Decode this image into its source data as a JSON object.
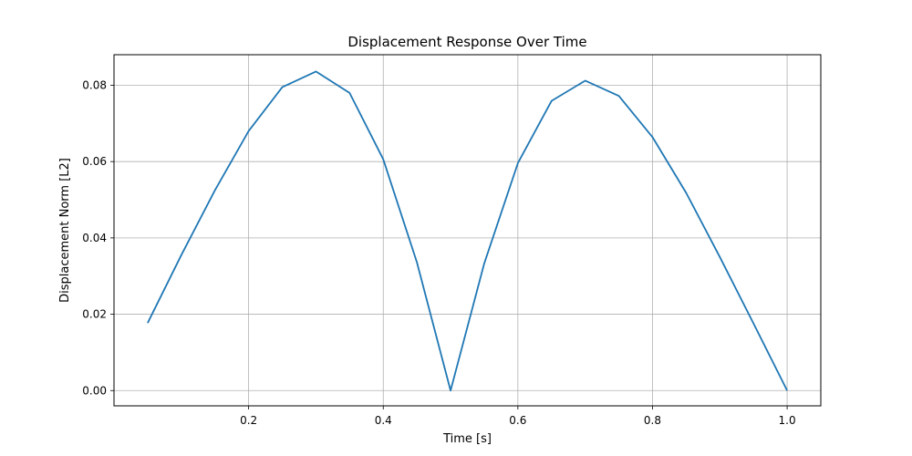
{
  "chart_data": {
    "type": "line",
    "title": "Displacement Response Over Time",
    "xlabel": "Time [s]",
    "ylabel": "Displacement Norm [L2]",
    "xlim": [
      0.0,
      1.05
    ],
    "ylim": [
      -0.004,
      0.088
    ],
    "xticks": [
      0.2,
      0.4,
      0.6,
      0.8,
      1.0
    ],
    "xtick_labels": [
      "0.2",
      "0.4",
      "0.6",
      "0.8",
      "1.0"
    ],
    "yticks": [
      0.0,
      0.02,
      0.04,
      0.06,
      0.08
    ],
    "ytick_labels": [
      "0.00",
      "0.02",
      "0.04",
      "0.06",
      "0.08"
    ],
    "grid": true,
    "series": [
      {
        "color": "#1f77b4",
        "x": [
          0.05,
          0.1,
          0.15,
          0.2,
          0.25,
          0.3,
          0.35,
          0.4,
          0.45,
          0.5,
          0.55,
          0.6,
          0.65,
          0.7,
          0.75,
          0.8,
          0.85,
          0.9,
          0.95,
          1.0
        ],
        "y": [
          0.0177,
          0.0355,
          0.0525,
          0.068,
          0.0795,
          0.0836,
          0.078,
          0.0606,
          0.0336,
          0.0,
          0.0333,
          0.0596,
          0.0759,
          0.0812,
          0.0772,
          0.0664,
          0.0518,
          0.035,
          0.0176,
          0.0
        ]
      }
    ]
  }
}
